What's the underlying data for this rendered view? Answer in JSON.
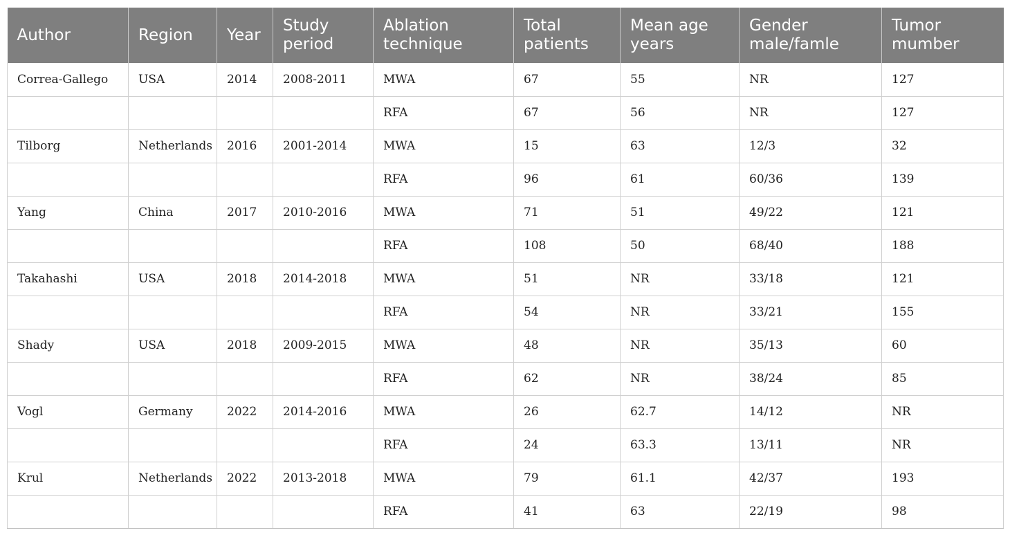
{
  "table": {
    "headers": [
      "Author",
      "Region",
      "Year",
      "Study period",
      "Ablation technique",
      "Total patients",
      "Mean age years",
      "Gender male/famle",
      "Tumor mumber"
    ],
    "rows": [
      [
        "Correa-Gallego",
        "USA",
        "2014",
        "2008-2011",
        "MWA",
        "67",
        "55",
        "NR",
        "127"
      ],
      [
        "",
        "",
        "",
        "",
        "RFA",
        "67",
        "56",
        "NR",
        "127"
      ],
      [
        "Tilborg",
        "Netherlands",
        "2016",
        "2001-2014",
        "MWA",
        "15",
        "63",
        "12/3",
        "32"
      ],
      [
        "",
        "",
        "",
        "",
        "RFA",
        "96",
        "61",
        "60/36",
        "139"
      ],
      [
        "Yang",
        "China",
        "2017",
        "2010-2016",
        "MWA",
        "71",
        "51",
        "49/22",
        "121"
      ],
      [
        "",
        "",
        "",
        "",
        "RFA",
        "108",
        "50",
        "68/40",
        "188"
      ],
      [
        "Takahashi",
        "USA",
        "2018",
        "2014-2018",
        "MWA",
        "51",
        "NR",
        "33/18",
        "121"
      ],
      [
        "",
        "",
        "",
        "",
        "RFA",
        "54",
        "NR",
        "33/21",
        "155"
      ],
      [
        "Shady",
        "USA",
        "2018",
        "2009-2015",
        "MWA",
        "48",
        "NR",
        "35/13",
        "60"
      ],
      [
        "",
        "",
        "",
        "",
        "RFA",
        "62",
        "NR",
        "38/24",
        "85"
      ],
      [
        "Vogl",
        "Germany",
        "2022",
        "2014-2016",
        "MWA",
        "26",
        "62.7",
        "14/12",
        "NR"
      ],
      [
        "",
        "",
        "",
        "",
        "RFA",
        "24",
        "63.3",
        "13/11",
        "NR"
      ],
      [
        "Krul",
        "Netherlands",
        "2022",
        "2013-2018",
        "MWA",
        "79",
        "61.1",
        "42/37",
        "193"
      ],
      [
        "",
        "",
        "",
        "",
        "RFA",
        "41",
        "63",
        "22/19",
        "98"
      ]
    ]
  }
}
